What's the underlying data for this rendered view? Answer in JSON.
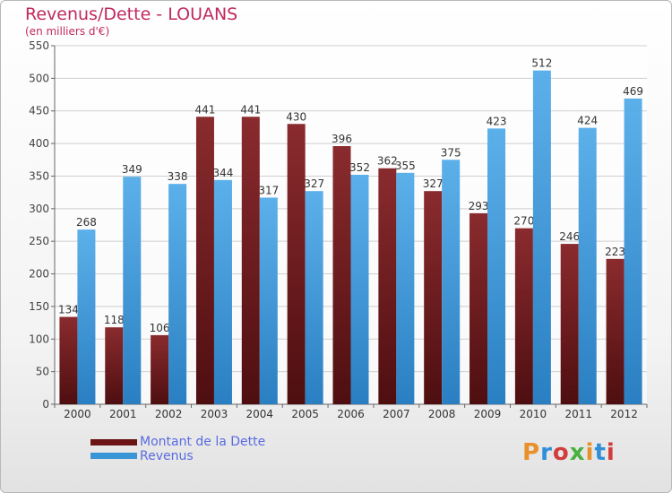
{
  "title": "Revenus/Dette - LOUANS",
  "subtitle": "(en milliers d'€)",
  "logo": "Proxiti",
  "colors": {
    "dette": "#7a1f22",
    "revenus": "#3a95d6",
    "title": "#c0295f",
    "legend_text": "#5a6be0"
  },
  "chart_data": {
    "type": "bar",
    "categories": [
      "2000",
      "2001",
      "2002",
      "2003",
      "2004",
      "2005",
      "2006",
      "2007",
      "2008",
      "2009",
      "2010",
      "2011",
      "2012"
    ],
    "series": [
      {
        "name": "Montant de la Dette",
        "values": [
          134,
          118,
          106,
          441,
          441,
          430,
          396,
          362,
          327,
          293,
          270,
          246,
          223
        ]
      },
      {
        "name": "Revenus",
        "values": [
          268,
          349,
          338,
          344,
          317,
          327,
          352,
          355,
          375,
          423,
          512,
          424,
          469
        ]
      }
    ],
    "yticks": [
      0,
      50,
      100,
      150,
      200,
      250,
      300,
      350,
      400,
      450,
      500,
      550
    ],
    "ylim": [
      0,
      550
    ],
    "grid": true,
    "legend": "bottom-left"
  }
}
